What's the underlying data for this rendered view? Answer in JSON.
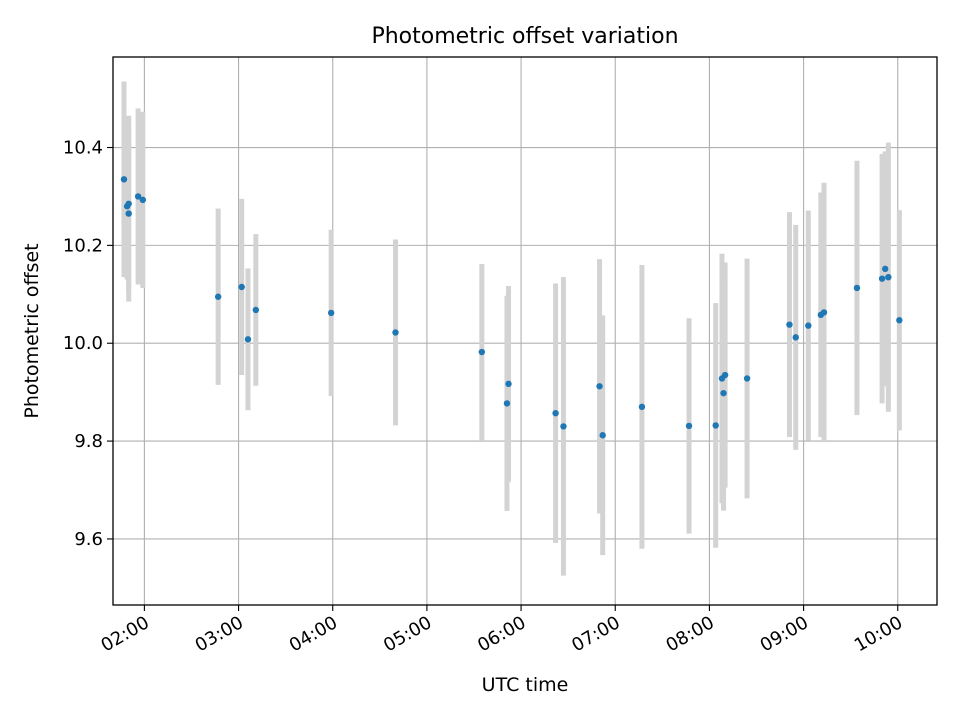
{
  "chart_data": {
    "type": "scatter",
    "title": "Photometric offset variation",
    "xlabel": "UTC time",
    "ylabel": "Photometric offset",
    "xlim": [
      "01:40",
      "10:25"
    ],
    "ylim": [
      9.465,
      10.585
    ],
    "grid": true,
    "x_ticks": [
      "02:00",
      "03:00",
      "04:00",
      "05:00",
      "06:00",
      "07:00",
      "08:00",
      "09:00",
      "10:00"
    ],
    "y_ticks": [
      9.6,
      9.8,
      10.0,
      10.2,
      10.4
    ],
    "y_tick_labels": [
      "9.6",
      "9.8",
      "10.0",
      "10.2",
      "10.4"
    ],
    "colors": {
      "marker": "#1f77b4",
      "errorbar": "#d3d3d3",
      "grid": "#b0b0b0"
    },
    "series": [
      {
        "points": [
          {
            "x": "01:47",
            "y": 10.335,
            "yerr": 0.2
          },
          {
            "x": "01:49",
            "y": 10.28,
            "yerr": 0.15
          },
          {
            "x": "01:50",
            "y": 10.265,
            "yerr": 0.18
          },
          {
            "x": "01:50",
            "y": 10.285,
            "yerr": 0.18
          },
          {
            "x": "01:56",
            "y": 10.3,
            "yerr": 0.18
          },
          {
            "x": "01:59",
            "y": 10.293,
            "yerr": 0.18
          },
          {
            "x": "02:47",
            "y": 10.095,
            "yerr": 0.18
          },
          {
            "x": "03:02",
            "y": 10.115,
            "yerr": 0.18
          },
          {
            "x": "03:06",
            "y": 10.008,
            "yerr": 0.145
          },
          {
            "x": "03:11",
            "y": 10.068,
            "yerr": 0.155
          },
          {
            "x": "03:59",
            "y": 10.062,
            "yerr": 0.17
          },
          {
            "x": "04:40",
            "y": 10.022,
            "yerr": 0.19
          },
          {
            "x": "05:35",
            "y": 9.982,
            "yerr": 0.18
          },
          {
            "x": "05:51",
            "y": 9.877,
            "yerr": 0.22
          },
          {
            "x": "05:52",
            "y": 9.917,
            "yerr": 0.2
          },
          {
            "x": "06:22",
            "y": 9.857,
            "yerr": 0.265
          },
          {
            "x": "06:27",
            "y": 9.83,
            "yerr": 0.305
          },
          {
            "x": "06:50",
            "y": 9.912,
            "yerr": 0.26
          },
          {
            "x": "06:52",
            "y": 9.812,
            "yerr": 0.245
          },
          {
            "x": "07:17",
            "y": 9.87,
            "yerr": 0.29
          },
          {
            "x": "07:47",
            "y": 9.831,
            "yerr": 0.22
          },
          {
            "x": "08:04",
            "y": 9.832,
            "yerr": 0.25
          },
          {
            "x": "08:08",
            "y": 9.928,
            "yerr": 0.255
          },
          {
            "x": "08:09",
            "y": 9.898,
            "yerr": 0.24
          },
          {
            "x": "08:10",
            "y": 9.935,
            "yerr": 0.23
          },
          {
            "x": "08:24",
            "y": 9.928,
            "yerr": 0.245
          },
          {
            "x": "08:51",
            "y": 10.038,
            "yerr": 0.23
          },
          {
            "x": "08:55",
            "y": 10.012,
            "yerr": 0.23
          },
          {
            "x": "09:03",
            "y": 10.036,
            "yerr": 0.235
          },
          {
            "x": "09:11",
            "y": 10.058,
            "yerr": 0.25
          },
          {
            "x": "09:13",
            "y": 10.063,
            "yerr": 0.265
          },
          {
            "x": "09:34",
            "y": 10.113,
            "yerr": 0.26
          },
          {
            "x": "09:50",
            "y": 10.132,
            "yerr": 0.255
          },
          {
            "x": "09:52",
            "y": 10.152,
            "yerr": 0.24
          },
          {
            "x": "09:54",
            "y": 10.135,
            "yerr": 0.275
          },
          {
            "x": "10:01",
            "y": 10.047,
            "yerr": 0.225
          }
        ]
      }
    ]
  }
}
